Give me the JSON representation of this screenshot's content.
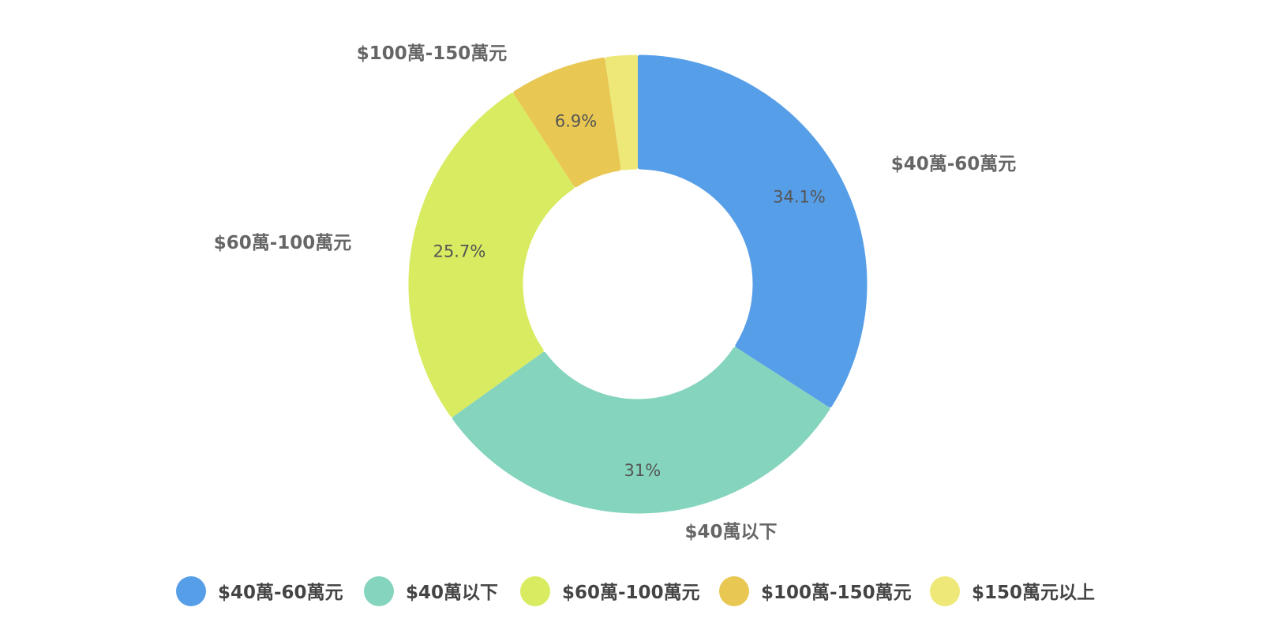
{
  "chart_data": {
    "type": "pie",
    "donut": true,
    "title": "",
    "categories": [
      "$40萬-60萬元",
      "$40萬以下",
      "$60萬-100萬元",
      "$100萬-150萬元",
      "$150萬元以上"
    ],
    "values": [
      34.1,
      31,
      25.7,
      6.9,
      2.3
    ],
    "value_labels": [
      "34.1%",
      "31%",
      "25.7%",
      "6.9%",
      ""
    ],
    "outer_labels": [
      "$40萬-60萬元",
      "$40萬以下",
      "$60萬-100萬元",
      "$100萬-150萬元",
      ""
    ],
    "colors": [
      "#579ee8",
      "#85d4bd",
      "#d9eb60",
      "#e8c852",
      "#eee878"
    ],
    "legend": {
      "position": "bottom",
      "entries": [
        "$40萬-60萬元",
        "$40萬以下",
        "$60萬-100萬元",
        "$100萬-150萬元",
        "$150萬元以上"
      ]
    }
  }
}
